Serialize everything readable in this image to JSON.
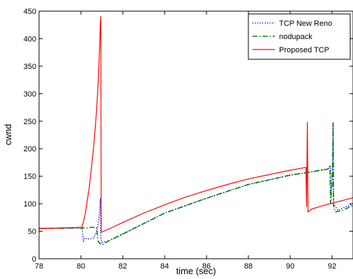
{
  "chart_data": {
    "type": "line",
    "title": "",
    "xlabel": "time (sec)",
    "ylabel": "cwnd",
    "xlim": [
      78,
      93
    ],
    "ylim": [
      0,
      450
    ],
    "xticks": [
      78,
      80,
      82,
      84,
      86,
      88,
      90,
      92
    ],
    "yticks": [
      0,
      50,
      100,
      150,
      200,
      250,
      300,
      350,
      400,
      450
    ],
    "grid": false,
    "legend_position": "top-right",
    "series": [
      {
        "name": "TCP New Reno",
        "color": "#0000ff",
        "style": "dotted",
        "points": [
          [
            78.0,
            55
          ],
          [
            80.05,
            56
          ],
          [
            80.12,
            32
          ],
          [
            80.18,
            38
          ],
          [
            80.3,
            36
          ],
          [
            80.45,
            36
          ],
          [
            80.6,
            38
          ],
          [
            80.75,
            48
          ],
          [
            80.85,
            70
          ],
          [
            80.9,
            90
          ],
          [
            80.93,
            110
          ],
          [
            80.95,
            40
          ],
          [
            81.0,
            30
          ],
          [
            81.3,
            32
          ],
          [
            82.0,
            45
          ],
          [
            84.0,
            83
          ],
          [
            86.0,
            110
          ],
          [
            88.0,
            135
          ],
          [
            90.0,
            152
          ],
          [
            91.0,
            158
          ],
          [
            91.8,
            163
          ],
          [
            91.92,
            170
          ],
          [
            91.95,
            120
          ],
          [
            92.0,
            135
          ],
          [
            92.03,
            170
          ],
          [
            92.05,
            248
          ],
          [
            92.07,
            100
          ],
          [
            92.15,
            95
          ],
          [
            92.3,
            88
          ],
          [
            92.5,
            92
          ],
          [
            93.0,
            100
          ]
        ]
      },
      {
        "name": "nodupack",
        "color": "#008000",
        "style": "dashdot",
        "points": [
          [
            78.0,
            55
          ],
          [
            80.05,
            56
          ],
          [
            80.3,
            56
          ],
          [
            80.5,
            57
          ],
          [
            80.75,
            57
          ],
          [
            80.82,
            32
          ],
          [
            80.9,
            28
          ],
          [
            81.0,
            25
          ],
          [
            81.3,
            32
          ],
          [
            82.0,
            45
          ],
          [
            84.0,
            83
          ],
          [
            86.0,
            110
          ],
          [
            88.0,
            135
          ],
          [
            90.0,
            152
          ],
          [
            91.0,
            158
          ],
          [
            91.8,
            163
          ],
          [
            91.9,
            168
          ],
          [
            91.93,
            100
          ],
          [
            91.98,
            130
          ],
          [
            92.02,
            160
          ],
          [
            92.05,
            245
          ],
          [
            92.07,
            95
          ],
          [
            92.15,
            85
          ],
          [
            92.5,
            88
          ],
          [
            93.0,
            97
          ]
        ]
      },
      {
        "name": "Proposed TCP",
        "color": "#ff0000",
        "style": "solid",
        "points": [
          [
            78.0,
            55
          ],
          [
            80.05,
            57
          ],
          [
            80.2,
            80
          ],
          [
            80.4,
            130
          ],
          [
            80.6,
            200
          ],
          [
            80.75,
            270
          ],
          [
            80.85,
            340
          ],
          [
            80.92,
            420
          ],
          [
            80.95,
            440
          ],
          [
            80.97,
            48
          ],
          [
            81.5,
            57
          ],
          [
            82.0,
            66
          ],
          [
            83.0,
            83
          ],
          [
            84.0,
            98
          ],
          [
            85.0,
            112
          ],
          [
            86.0,
            124
          ],
          [
            87.0,
            135
          ],
          [
            88.0,
            145
          ],
          [
            89.0,
            153
          ],
          [
            90.0,
            161
          ],
          [
            90.6,
            165
          ],
          [
            90.75,
            166
          ],
          [
            90.78,
            95
          ],
          [
            90.82,
            248
          ],
          [
            90.85,
            85
          ],
          [
            91.0,
            90
          ],
          [
            91.5,
            96
          ],
          [
            92.0,
            101
          ],
          [
            92.5,
            106
          ],
          [
            93.0,
            111
          ]
        ]
      }
    ]
  }
}
